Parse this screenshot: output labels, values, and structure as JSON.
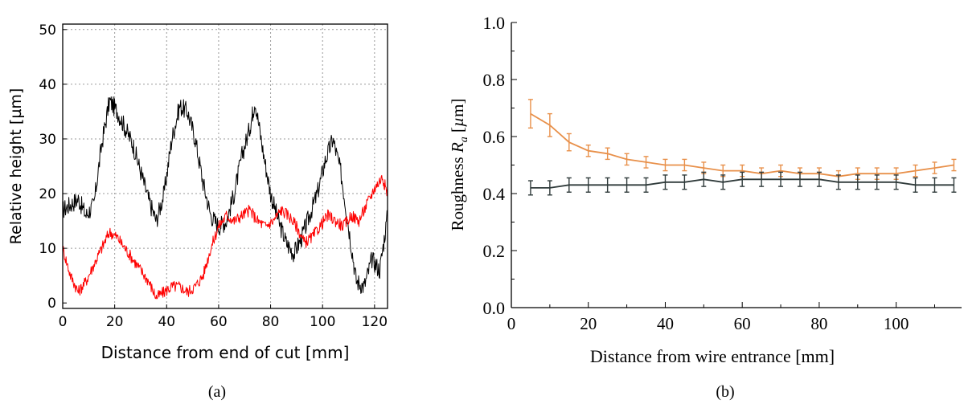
{
  "chart_data": [
    {
      "panel_label": "(a)",
      "type": "line",
      "xlabel": "Distance from end of cut [mm]",
      "ylabel": "Relative height [µm]",
      "xlim": [
        0,
        125
      ],
      "ylim": [
        -1,
        51
      ],
      "xticks": [
        "0",
        "20",
        "40",
        "60",
        "80",
        "100",
        "120"
      ],
      "yticks": [
        "0",
        "10",
        "20",
        "30",
        "40",
        "50"
      ],
      "grid": true,
      "colors": {
        "series_1": "#000000",
        "series_2": "#ff0000"
      },
      "series": [
        {
          "color": "#000000",
          "x": [
            0,
            3,
            6,
            9,
            12,
            15,
            18,
            21,
            24,
            27,
            30,
            33,
            36,
            39,
            42,
            45,
            48,
            51,
            54,
            57,
            60,
            63,
            66,
            69,
            72,
            74,
            77,
            80,
            83,
            86,
            89,
            92,
            95,
            98,
            101,
            104,
            107,
            110,
            113,
            116,
            119,
            122,
            125
          ],
          "y": [
            17,
            18,
            19,
            16,
            18,
            29,
            37,
            35,
            32,
            29,
            24,
            19,
            15,
            20,
            30,
            36,
            35,
            30,
            22,
            16,
            14,
            15,
            20,
            27,
            32,
            37,
            28,
            20,
            15,
            11,
            9,
            12,
            16,
            20,
            26,
            30,
            24,
            14,
            4,
            3,
            8,
            6,
            16
          ]
        },
        {
          "color": "#ff0000",
          "x": [
            0,
            3,
            6,
            9,
            12,
            15,
            18,
            21,
            24,
            27,
            30,
            33,
            36,
            39,
            42,
            45,
            48,
            51,
            54,
            57,
            60,
            63,
            66,
            69,
            72,
            75,
            78,
            81,
            84,
            87,
            90,
            93,
            96,
            99,
            102,
            105,
            108,
            111,
            114,
            117,
            120,
            123,
            125
          ],
          "y": [
            10,
            5,
            2,
            4,
            7,
            10,
            13,
            12,
            10,
            8,
            6,
            4,
            1,
            2,
            3,
            3,
            2,
            3,
            5,
            10,
            14,
            16,
            15,
            16,
            17,
            15,
            14,
            15,
            17,
            16,
            14,
            11,
            12,
            14,
            16,
            15,
            14,
            16,
            15,
            18,
            21,
            23,
            20
          ]
        }
      ]
    },
    {
      "panel_label": "(b)",
      "type": "line",
      "xlabel": "Distance from wire entrance [mm]",
      "ylabel_prefix": "Roughness ",
      "ylabel_symbol": "R",
      "ylabel_subscript": "a",
      "ylabel_suffix": " [",
      "ylabel_mu": "µ",
      "ylabel_unit": "m]",
      "xlim": [
        0,
        117
      ],
      "ylim": [
        0,
        1.0
      ],
      "xticks": [
        "0",
        "20",
        "40",
        "60",
        "80",
        "100"
      ],
      "yticks": [
        "0.0",
        "0.2",
        "0.4",
        "0.6",
        "0.8",
        "1.0"
      ],
      "grid": false,
      "colors": {
        "orange": "#e8904a",
        "dark": "#2f3a3a"
      },
      "series": [
        {
          "color": "#e8904a",
          "x": [
            5,
            10,
            15,
            20,
            25,
            30,
            35,
            40,
            45,
            50,
            55,
            60,
            65,
            70,
            75,
            80,
            85,
            90,
            95,
            100,
            105,
            110,
            115
          ],
          "y": [
            0.68,
            0.64,
            0.58,
            0.55,
            0.54,
            0.52,
            0.51,
            0.5,
            0.5,
            0.49,
            0.48,
            0.48,
            0.47,
            0.48,
            0.47,
            0.47,
            0.46,
            0.47,
            0.47,
            0.47,
            0.48,
            0.49,
            0.5
          ],
          "error": [
            0.05,
            0.04,
            0.03,
            0.02,
            0.02,
            0.02,
            0.02,
            0.02,
            0.02,
            0.02,
            0.02,
            0.02,
            0.02,
            0.02,
            0.02,
            0.02,
            0.02,
            0.02,
            0.02,
            0.02,
            0.02,
            0.02,
            0.02
          ]
        },
        {
          "color": "#2f3a3a",
          "x": [
            5,
            10,
            15,
            20,
            25,
            30,
            35,
            40,
            45,
            50,
            55,
            60,
            65,
            70,
            75,
            80,
            85,
            90,
            95,
            100,
            105,
            110,
            115
          ],
          "y": [
            0.42,
            0.42,
            0.43,
            0.43,
            0.43,
            0.43,
            0.43,
            0.44,
            0.44,
            0.45,
            0.44,
            0.45,
            0.45,
            0.45,
            0.45,
            0.45,
            0.44,
            0.44,
            0.44,
            0.44,
            0.43,
            0.43,
            0.43
          ],
          "error": [
            0.025,
            0.025,
            0.025,
            0.025,
            0.025,
            0.025,
            0.025,
            0.025,
            0.025,
            0.025,
            0.025,
            0.025,
            0.025,
            0.025,
            0.025,
            0.025,
            0.025,
            0.025,
            0.025,
            0.025,
            0.025,
            0.025,
            0.025
          ]
        }
      ]
    }
  ]
}
